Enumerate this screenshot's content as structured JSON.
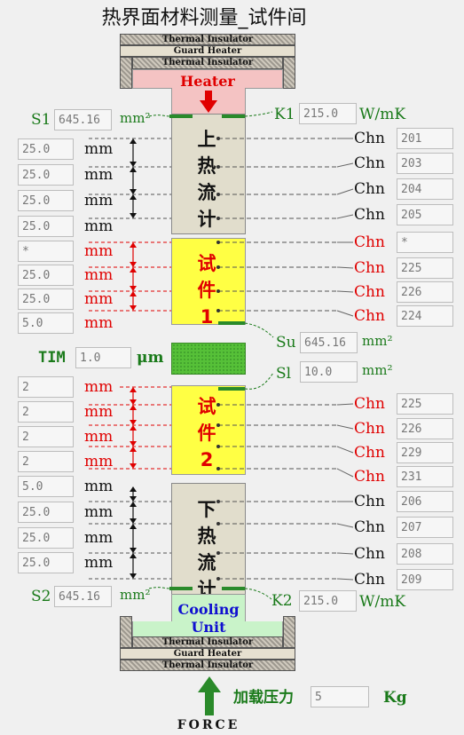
{
  "title": "热界面材料测量_试件间",
  "top_stack": {
    "insulator1": "Thermal Insulator",
    "guard": "Guard Heater",
    "insulator2": "Thermal Insulator",
    "heater": "Heater"
  },
  "bottom_stack": {
    "cooling": "Cooling Unit",
    "insulator1": "Thermal Insulator",
    "guard": "Guard Heater",
    "insulator2": "Thermal Insulator"
  },
  "upper_flux": {
    "label": "上热流计"
  },
  "specimen1": {
    "label": "试件1"
  },
  "specimen2": {
    "label": "试件2"
  },
  "lower_flux": {
    "label": "下热流计"
  },
  "s1": {
    "label": "S1",
    "value": "645.16",
    "unit": "mm²"
  },
  "k1": {
    "label": "K1",
    "value": "215.0",
    "unit": "W/mK"
  },
  "s2": {
    "label": "S2",
    "value": "645.16",
    "unit": "mm²"
  },
  "k2": {
    "label": "K2",
    "value": "215.0",
    "unit": "W/mK"
  },
  "su": {
    "label": "Su",
    "value": "645.16",
    "unit": "mm²"
  },
  "sl": {
    "label": "Sl",
    "value": "10.0",
    "unit": "mm²"
  },
  "tim": {
    "label": "TIM",
    "value": "1.0",
    "unit": "μm"
  },
  "left_rows": [
    {
      "value": "25.0",
      "unit": "mm",
      "color": "black"
    },
    {
      "value": "25.0",
      "unit": "mm",
      "color": "black"
    },
    {
      "value": "25.0",
      "unit": "mm",
      "color": "black"
    },
    {
      "value": "25.0",
      "unit": "mm",
      "color": "black"
    },
    {
      "value": "*",
      "unit": "mm",
      "color": "red"
    },
    {
      "value": "25.0",
      "unit": "mm",
      "color": "red"
    },
    {
      "value": "25.0",
      "unit": "mm",
      "color": "red"
    },
    {
      "value": "5.0",
      "unit": "mm",
      "color": "red"
    },
    {
      "value": "2",
      "unit": "mm",
      "color": "red"
    },
    {
      "value": "2",
      "unit": "mm",
      "color": "red"
    },
    {
      "value": "2",
      "unit": "mm",
      "color": "red"
    },
    {
      "value": "2",
      "unit": "mm",
      "color": "red"
    },
    {
      "value": "5.0",
      "unit": "mm",
      "color": "black"
    },
    {
      "value": "25.0",
      "unit": "mm",
      "color": "black"
    },
    {
      "value": "25.0",
      "unit": "mm",
      "color": "black"
    },
    {
      "value": "25.0",
      "unit": "mm",
      "color": "black"
    }
  ],
  "right_rows": [
    {
      "label": "Chn",
      "value": "201",
      "color": "black"
    },
    {
      "label": "Chn",
      "value": "203",
      "color": "black"
    },
    {
      "label": "Chn",
      "value": "204",
      "color": "black"
    },
    {
      "label": "Chn",
      "value": "205",
      "color": "black"
    },
    {
      "label": "Chn",
      "value": "*",
      "color": "red"
    },
    {
      "label": "Chn",
      "value": "225",
      "color": "red"
    },
    {
      "label": "Chn",
      "value": "226",
      "color": "red"
    },
    {
      "label": "Chn",
      "value": "224",
      "color": "red"
    },
    {
      "label": "Chn",
      "value": "225",
      "color": "red"
    },
    {
      "label": "Chn",
      "value": "226",
      "color": "red"
    },
    {
      "label": "Chn",
      "value": "229",
      "color": "red"
    },
    {
      "label": "Chn",
      "value": "231",
      "color": "red"
    },
    {
      "label": "Chn",
      "value": "206",
      "color": "black"
    },
    {
      "label": "Chn",
      "value": "207",
      "color": "black"
    },
    {
      "label": "Chn",
      "value": "208",
      "color": "black"
    },
    {
      "label": "Chn",
      "value": "209",
      "color": "black"
    }
  ],
  "load": {
    "label": "加载压力",
    "value": "5",
    "unit": "Kg"
  },
  "force": {
    "label": "FORCE"
  },
  "colors": {
    "red": "#e00000",
    "green": "#1a7a1a",
    "black": "#111111",
    "specimen": "#ffff44",
    "heater": "#f4c3c3",
    "cooling": "#c9f3c9"
  }
}
